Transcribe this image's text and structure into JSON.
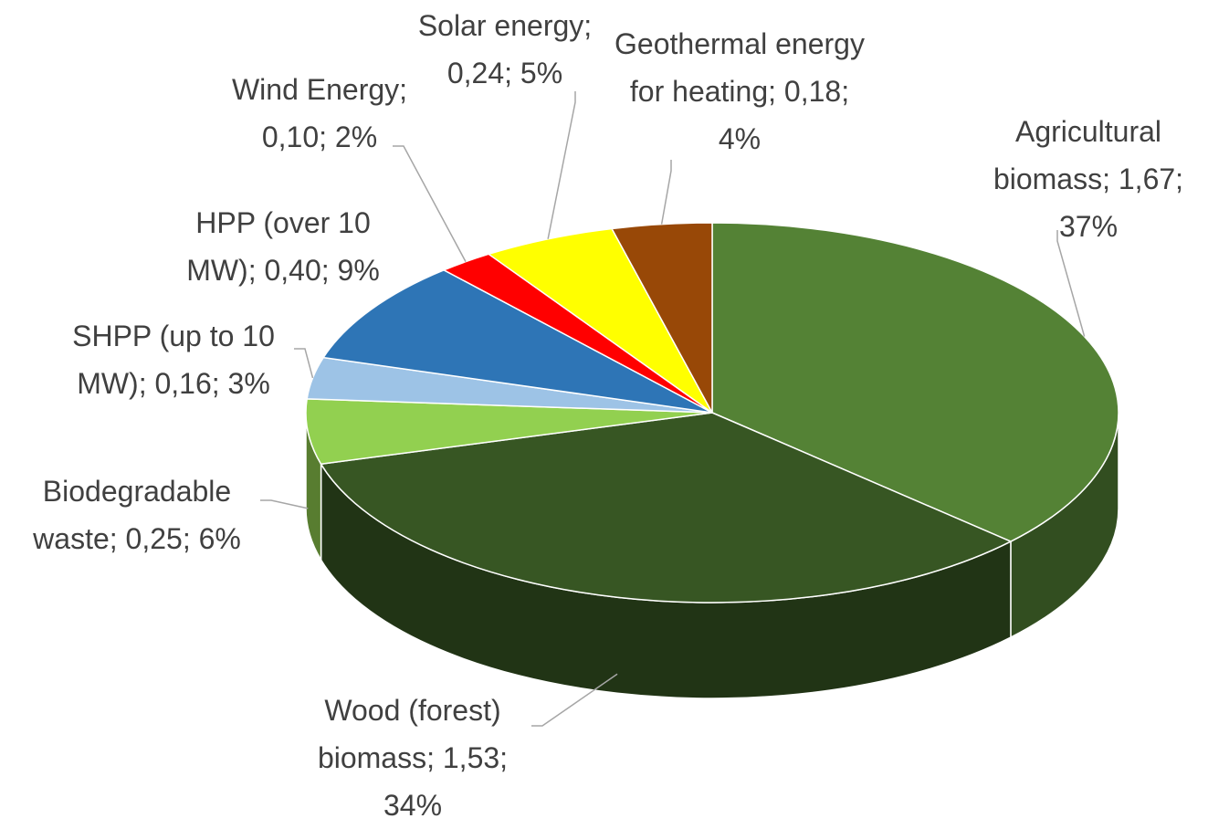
{
  "chart_data": {
    "type": "pie3d",
    "values": [
      1.67,
      1.53,
      0.25,
      0.16,
      0.4,
      0.1,
      0.24,
      0.18
    ],
    "value_labels": [
      "Agricultural biomass; 1,67; 37%",
      "Wood (forest) biomass; 1,53; 34%",
      "Biodegradable waste; 0,25; 6%",
      "SHPP (up to 10 MW); 0,16; 3%",
      "HPP (over 10 MW); 0,40; 9%",
      "Wind Energy; 0,10; 2%",
      "Solar energy; 0,24; 5%",
      "Geothermal energy for heating; 0,18; 4%"
    ],
    "colors": [
      "#548235",
      "#375623",
      "#92d050",
      "#9dc3e6",
      "#2e75b6",
      "#ff0000",
      "#ffff00",
      "#984807"
    ]
  }
}
